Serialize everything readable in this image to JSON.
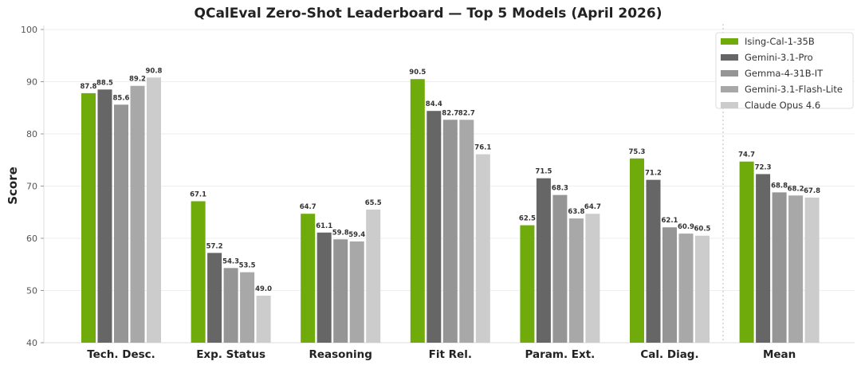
{
  "chart_data": {
    "type": "bar",
    "title": "QCalEval Zero-Shot Leaderboard — Top 5 Models (April 2026)",
    "xlabel": "",
    "ylabel": "Score",
    "ylim": [
      40,
      100
    ],
    "yticks": [
      40,
      50,
      60,
      70,
      80,
      90,
      100
    ],
    "grid": true,
    "legend_position": "top-right",
    "categories": [
      "Tech. Desc.",
      "Exp. Status",
      "Reasoning",
      "Fit Rel.",
      "Param. Ext.",
      "Cal. Diag.",
      "Mean"
    ],
    "series": [
      {
        "name": "Ising-Cal-1-35B",
        "color": "#6fab0a",
        "values": [
          87.8,
          67.1,
          64.7,
          90.5,
          62.5,
          75.3,
          74.7
        ]
      },
      {
        "name": "Gemini-3.1-Pro",
        "color": "#666666",
        "values": [
          88.5,
          57.2,
          61.1,
          84.4,
          71.5,
          71.2,
          72.3
        ]
      },
      {
        "name": "Gemma-4-31B-IT",
        "color": "#959595",
        "values": [
          85.6,
          54.3,
          59.8,
          82.7,
          68.3,
          62.1,
          68.8
        ]
      },
      {
        "name": "Gemini-3.1-Flash-Lite",
        "color": "#a8a8a8",
        "values": [
          89.2,
          53.5,
          59.4,
          82.7,
          63.8,
          60.9,
          68.2
        ]
      },
      {
        "name": "Claude Opus 4.6",
        "color": "#cccccc",
        "values": [
          90.8,
          49.0,
          65.5,
          76.1,
          64.7,
          60.5,
          67.8
        ]
      }
    ]
  }
}
